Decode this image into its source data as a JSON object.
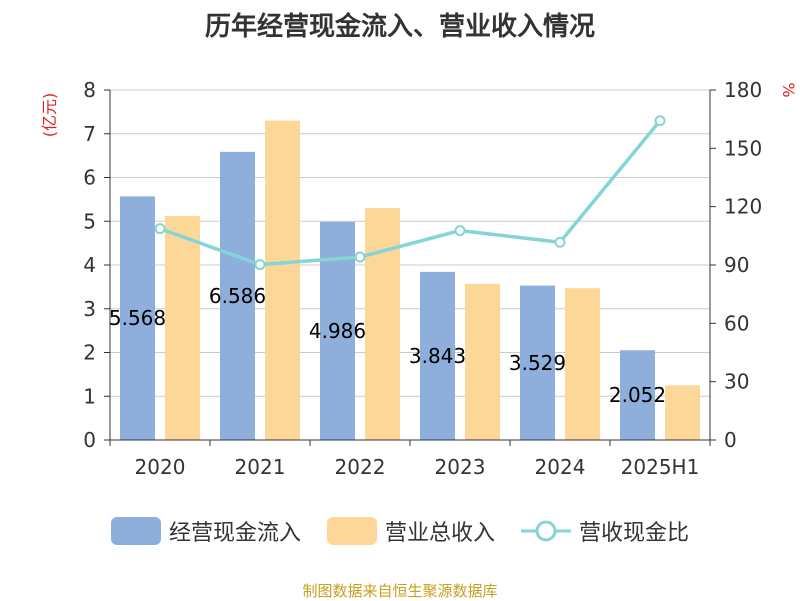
{
  "chart_data": {
    "type": "bar",
    "title": "历年经营现金流入、营业收入情况",
    "categories": [
      "2020",
      "2021",
      "2022",
      "2023",
      "2024",
      "2025H1"
    ],
    "y_left_label": "(亿元)",
    "y_right_label": "%",
    "y_left_range": [
      0,
      8
    ],
    "y_left_ticks": [
      "0",
      "1",
      "2",
      "3",
      "4",
      "5",
      "6",
      "7",
      "8"
    ],
    "y_right_range": [
      0,
      180
    ],
    "y_right_ticks": [
      "0",
      "30",
      "60",
      "90",
      "120",
      "150",
      "180"
    ],
    "grid": true,
    "legend_position": "bottom",
    "series": [
      {
        "name": "经营现金流入",
        "type": "bar",
        "axis": "left",
        "color": "#8eaedb",
        "values": [
          5.568,
          6.586,
          4.986,
          3.843,
          3.529,
          2.052
        ],
        "labels": [
          "5.568",
          "6.586",
          "4.986",
          "3.843",
          "3.529",
          "2.052"
        ]
      },
      {
        "name": "营业总收入",
        "type": "bar",
        "axis": "left",
        "color": "#fdd797",
        "values": [
          5.12,
          7.3,
          5.3,
          3.57,
          3.47,
          1.25
        ]
      },
      {
        "name": "营收现金比",
        "type": "line",
        "axis": "right",
        "color": "#85d4d6",
        "values": [
          108.7,
          90.2,
          94.1,
          107.7,
          101.7,
          164.2
        ]
      }
    ]
  },
  "footer": {
    "source": "制图数据来自恒生聚源数据库"
  }
}
